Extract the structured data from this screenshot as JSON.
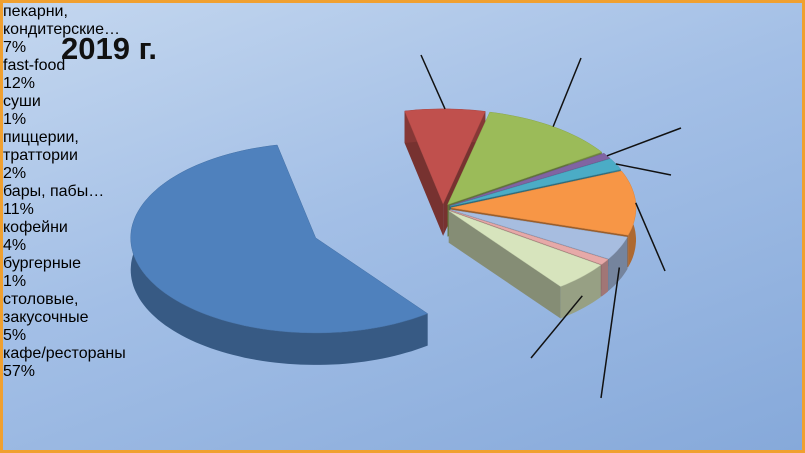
{
  "chart_data": {
    "type": "pie",
    "title": "2019 г.",
    "categories": [
      "пекарни, кондитерские…",
      "fast-food",
      "суши",
      "пиццерии, траттории",
      "бары, пабы…",
      "кофейни",
      "бургерные",
      "столовые, закусочные",
      "кафе/рестораны"
    ],
    "values": [
      7,
      12,
      1,
      2,
      11,
      4,
      1,
      5,
      57
    ],
    "value_labels": [
      "7%",
      "12%",
      "1%",
      "2%",
      "11%",
      "4%",
      "1%",
      "5%",
      "57%"
    ],
    "colors": [
      "#c0504d",
      "#9bbb59",
      "#8064a2",
      "#4bacc6",
      "#f79646",
      "#a7bde0",
      "#e6a9a8",
      "#d7e4bd",
      "#4f81bd"
    ]
  }
}
